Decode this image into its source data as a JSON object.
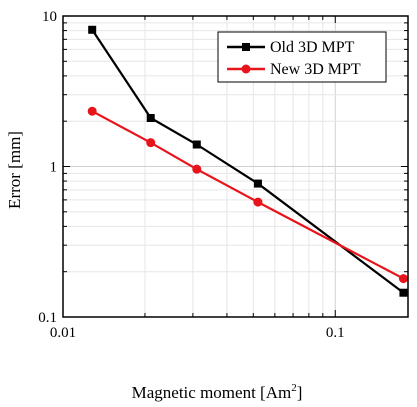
{
  "chart_data": {
    "type": "line",
    "title": "",
    "xlabel": "Magnetic moment [Am",
    "xlabel_sup": "2",
    "xlabel_end": "]",
    "ylabel": "Error [mm]",
    "xscale": "log",
    "yscale": "log",
    "xlim": [
      0.01,
      0.185
    ],
    "ylim": [
      0.1,
      10
    ],
    "x_ticks": [
      {
        "value": 0.01,
        "label": "0.01"
      },
      {
        "value": 0.1,
        "label": "0.1"
      }
    ],
    "y_ticks": [
      {
        "value": 0.1,
        "label": "0.1"
      },
      {
        "value": 1,
        "label": "1"
      },
      {
        "value": 10,
        "label": "10"
      }
    ],
    "grid": true,
    "legend_position": "top-right",
    "series": [
      {
        "name": "Old 3D MPT",
        "color": "#000000",
        "marker": "square",
        "x": [
          0.0128,
          0.021,
          0.031,
          0.052,
          0.178
        ],
        "y": [
          8.1,
          2.1,
          1.4,
          0.77,
          0.145
        ]
      },
      {
        "name": "New 3D MPT",
        "color": "#e8141b",
        "marker": "circle",
        "x": [
          0.0128,
          0.021,
          0.031,
          0.052,
          0.178
        ],
        "y": [
          2.33,
          1.44,
          0.96,
          0.58,
          0.18
        ]
      }
    ]
  }
}
